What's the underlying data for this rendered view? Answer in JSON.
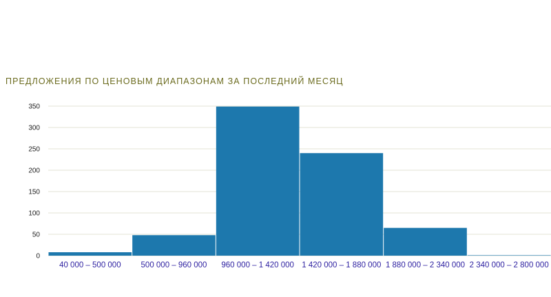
{
  "chart_data": {
    "type": "bar",
    "title": "ПРЕДЛОЖЕНИЯ ПО ЦЕНОВЫМ ДИАПАЗОНАМ ЗА ПОСЛЕДНИЙ МЕСЯЦ",
    "xlabel": "",
    "ylabel": "",
    "categories": [
      "40 000 – 500 000",
      "500 000 – 960 000",
      "960 000 – 1 420 000",
      "1 420 000 – 1 880 000",
      "1 880 000 – 2 340 000",
      "2 340 000 – 2 800 000"
    ],
    "values": [
      8,
      48,
      349,
      240,
      65,
      1
    ],
    "ylim": [
      0,
      350
    ],
    "yticks": [
      0,
      50,
      100,
      150,
      200,
      250,
      300,
      350
    ],
    "grid": true,
    "legend": "none",
    "bar_color": "#1d78ad",
    "grid_color": "#e3e3d6"
  }
}
